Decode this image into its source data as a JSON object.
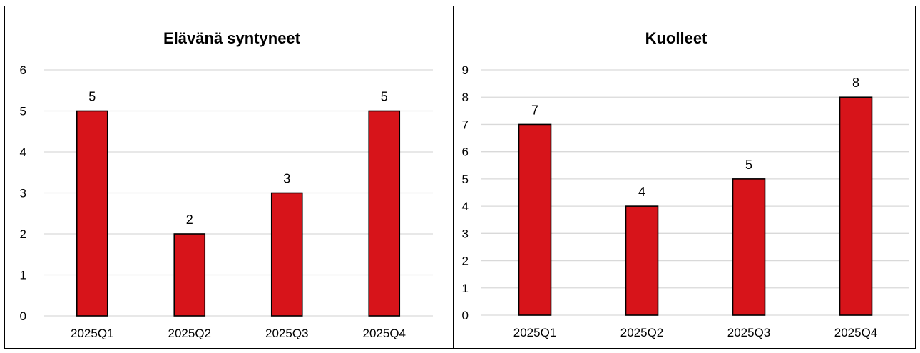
{
  "chart_data": [
    {
      "type": "bar",
      "title": "Elävänä syntyneet",
      "categories": [
        "2025Q1",
        "2025Q2",
        "2025Q3",
        "2025Q4"
      ],
      "values": [
        5,
        2,
        3,
        5
      ],
      "ylim": [
        0,
        6
      ],
      "yticks": [
        "0",
        "1",
        "2",
        "3",
        "4",
        "5",
        "6"
      ],
      "data_labels": [
        "5",
        "2",
        "3",
        "5"
      ],
      "grid": true,
      "bar_color": "#d7141a"
    },
    {
      "type": "bar",
      "title": "Kuolleet",
      "categories": [
        "2025Q1",
        "2025Q2",
        "2025Q3",
        "2025Q4"
      ],
      "values": [
        7,
        4,
        5,
        8
      ],
      "ylim": [
        0,
        9
      ],
      "yticks": [
        "0",
        "1",
        "2",
        "3",
        "4",
        "5",
        "6",
        "7",
        "8",
        "9"
      ],
      "data_labels": [
        "7",
        "4",
        "5",
        "8"
      ],
      "grid": true,
      "bar_color": "#d7141a"
    }
  ]
}
